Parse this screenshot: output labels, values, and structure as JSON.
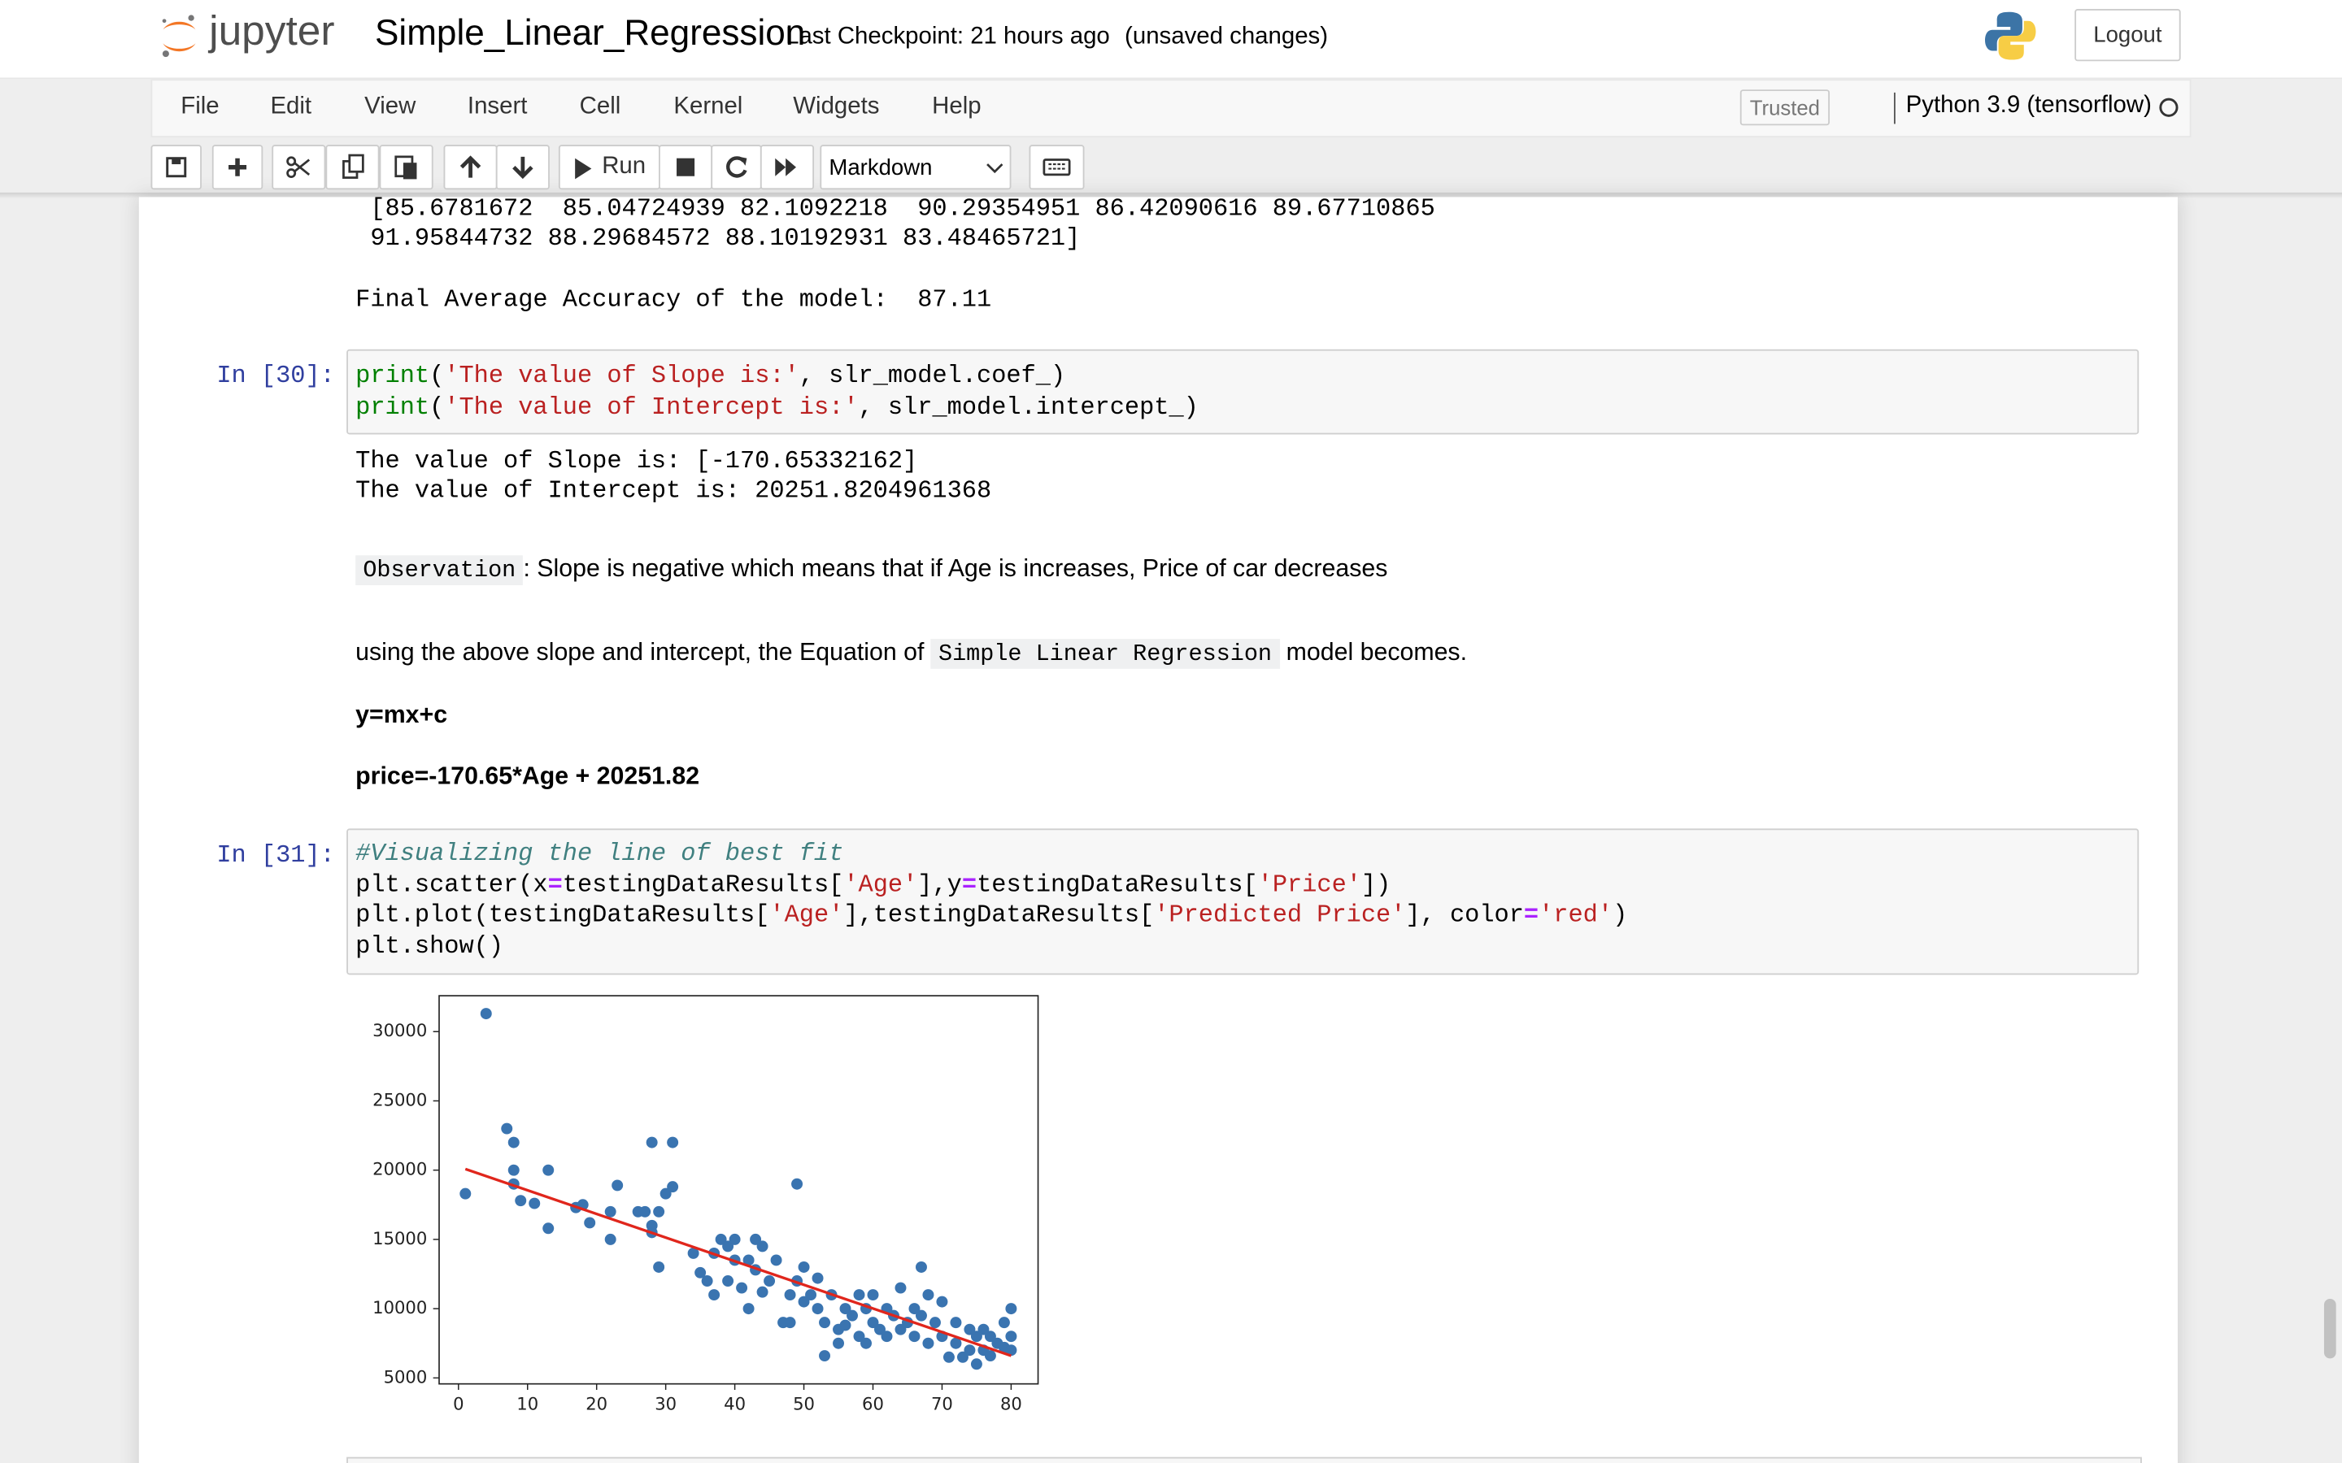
{
  "header": {
    "logo": "jupyter",
    "notebook_name": "Simple_Linear_Regression",
    "checkpoint": "Last Checkpoint: 21 hours ago",
    "status": "(unsaved changes)",
    "logout": "Logout"
  },
  "menu": {
    "items": [
      "File",
      "Edit",
      "View",
      "Insert",
      "Cell",
      "Kernel",
      "Widgets",
      "Help"
    ],
    "trusted": "Trusted",
    "kernel": "Python 3.9 (tensorflow)"
  },
  "toolbar": {
    "run": "Run",
    "cell_type": "Markdown"
  },
  "cells": [
    {
      "output": [
        " [85.6781672  85.04724939 82.1092218  90.29354951 86.42090616 89.67710865",
        " 91.95844732 88.29684572 88.10192931 83.48465721]",
        "Final Average Accuracy of the model:  87.11"
      ]
    },
    {
      "prompt": "In [30]:",
      "code": [
        [
          "print",
          "(",
          "'The value of Slope is:'",
          ", slr_model.coef_)"
        ],
        [
          "print",
          "(",
          "'The value of Intercept is:'",
          ", slr_model.intercept_)"
        ]
      ],
      "output": [
        "The value of Slope is: [-170.65332162]",
        "The value of Intercept is: 20251.8204961368"
      ]
    },
    {
      "markdown": {
        "observation_code": "Observation",
        "observation_text": ": Slope is negative which means that if Age is increases, Price of car decreases",
        "equation_prefix": "using the above slope and intercept, the Equation of ",
        "equation_code": "Simple Linear Regression",
        "equation_suffix": " model becomes.",
        "formula": "y=mx+c",
        "fitted": "price=-170.65*Age + 20251.82"
      }
    },
    {
      "prompt": "In [31]:",
      "code": [
        [
          "#Visualizing the line of best fit"
        ],
        [
          "plt.scatter(x",
          "=",
          "testingDataResults[",
          "'Age'",
          "],y",
          "=",
          "testingDataResults[",
          "'Price'",
          "])"
        ],
        [
          "plt.plot(testingDataResults[",
          "'Age'",
          "],testingDataResults[",
          "'Predicted Price'",
          "], color",
          "=",
          "'red'",
          ")"
        ],
        [
          "plt.show()"
        ]
      ]
    }
  ],
  "chart_data": {
    "type": "scatter",
    "xlim": [
      -2.8,
      83.9
    ],
    "ylim": [
      4570,
      32590
    ],
    "xticks": [
      0,
      10,
      20,
      30,
      40,
      50,
      60,
      70,
      80
    ],
    "yticks": [
      5000,
      10000,
      15000,
      20000,
      25000,
      30000
    ],
    "series": [
      {
        "type": "scatter",
        "color": "#3a74b0",
        "x": [
          1,
          4,
          7,
          8,
          8,
          8,
          9,
          11,
          13,
          13,
          17,
          18,
          19,
          22,
          22,
          23,
          26,
          27,
          28,
          28,
          28,
          29,
          29,
          30,
          31,
          31,
          34,
          35,
          36,
          37,
          37,
          38,
          39,
          39,
          40,
          40,
          41,
          42,
          42,
          43,
          43,
          44,
          44,
          45,
          46,
          47,
          48,
          48,
          49,
          49,
          50,
          50,
          51,
          52,
          52,
          53,
          53,
          54,
          55,
          55,
          56,
          56,
          57,
          58,
          58,
          59,
          59,
          60,
          60,
          61,
          62,
          62,
          63,
          64,
          64,
          65,
          66,
          66,
          67,
          67,
          68,
          68,
          69,
          70,
          70,
          71,
          72,
          72,
          73,
          74,
          74,
          75,
          75,
          76,
          76,
          77,
          77,
          78,
          79,
          79,
          80,
          80,
          80
        ],
        "values": [
          18300,
          31300,
          23000,
          22000,
          20000,
          19000,
          17800,
          17600,
          20000,
          15800,
          17300,
          17500,
          16200,
          15000,
          17000,
          18900,
          17000,
          17000,
          22000,
          16000,
          15500,
          13000,
          17000,
          18300,
          22000,
          18800,
          14000,
          12600,
          12000,
          14000,
          11000,
          15000,
          14500,
          12000,
          15000,
          13500,
          11500,
          13500,
          10000,
          15000,
          12800,
          14500,
          11200,
          12000,
          13500,
          9000,
          9000,
          11000,
          12000,
          19000,
          13000,
          10500,
          11000,
          12200,
          10000,
          9000,
          6600,
          11000,
          8500,
          7500,
          10000,
          8800,
          9500,
          11000,
          8000,
          10000,
          7500,
          11000,
          9000,
          8500,
          10000,
          8000,
          9500,
          11500,
          8500,
          9000,
          10000,
          8000,
          13000,
          9500,
          11000,
          7500,
          9000,
          10500,
          8000,
          6500,
          9000,
          7500,
          6500,
          8500,
          7000,
          8000,
          6000,
          8500,
          7000,
          6600,
          8000,
          7500,
          9000,
          7200,
          10000,
          8000,
          7000
        ]
      },
      {
        "type": "line",
        "color": "#e0261c",
        "x": [
          1,
          80
        ],
        "values": [
          20081,
          6600
        ]
      }
    ]
  }
}
